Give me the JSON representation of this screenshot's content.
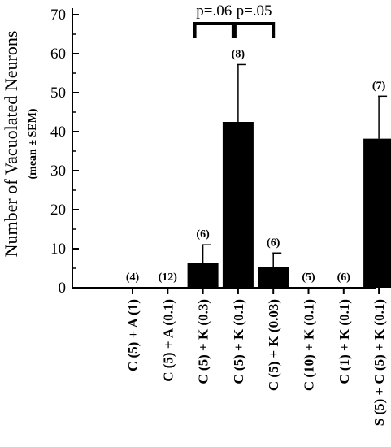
{
  "chart_data": {
    "type": "bar",
    "ylabel": "Number of Vacuolated Neurons",
    "ylabel_sub": "(mean ± SEM)",
    "ylim": [
      0,
      70
    ],
    "yticks": [
      0,
      10,
      20,
      30,
      40,
      50,
      60,
      70
    ],
    "categories": [
      "C (5) + A (1)",
      "C (5) + A (0.1)",
      "C (5) + K (0.3)",
      "C (5) + K (0.1)",
      "C (5) + K (0.03)",
      "C (10) + K (0.1)",
      "C (1) + K (0.1)",
      "S (5) + C (5) + K (0.1)"
    ],
    "values": [
      0,
      0,
      6.3,
      42.5,
      5.3,
      0,
      0,
      38.2
    ],
    "errors": [
      0,
      0,
      4.7,
      14.7,
      3.6,
      0,
      0,
      10.9
    ],
    "n_labels": [
      "(4)",
      "(12)",
      "(6)",
      "(8)",
      "(6)",
      "(5)",
      "(6)",
      "(7)"
    ],
    "bar_color": "#000000",
    "grid": false,
    "legend": "none",
    "annotations": [
      {
        "text": "p=.06",
        "from_category": 2,
        "to_category": 3
      },
      {
        "text": "p=.05",
        "from_category": 3,
        "to_category": 4
      }
    ]
  }
}
